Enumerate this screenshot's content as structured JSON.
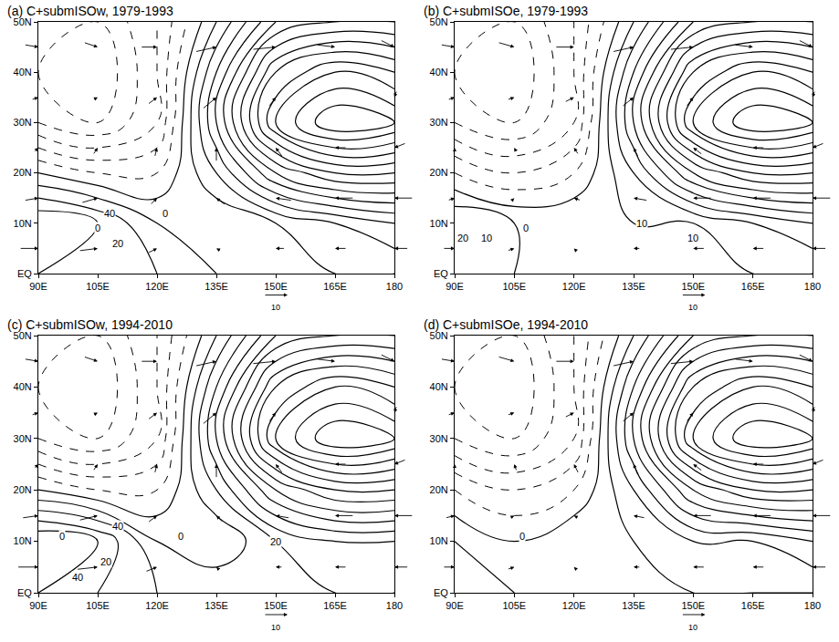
{
  "chart_data": [
    {
      "type": "contour",
      "title": "(a) C+submISOw, 1979-1993",
      "xlim": [
        90,
        180
      ],
      "ylim": [
        0,
        50
      ],
      "xticks": [
        {
          "value": 90,
          "label": "90E"
        },
        {
          "value": 105,
          "label": "105E"
        },
        {
          "value": 120,
          "label": "120E"
        },
        {
          "value": 135,
          "label": "135E"
        },
        {
          "value": 150,
          "label": "150E"
        },
        {
          "value": 165,
          "label": "165E"
        },
        {
          "value": 180,
          "label": "180"
        }
      ],
      "yticks": [
        {
          "value": 0,
          "label": "EQ"
        },
        {
          "value": 10,
          "label": "10N"
        },
        {
          "value": 20,
          "label": "20N"
        },
        {
          "value": 30,
          "label": "30N"
        },
        {
          "value": 40,
          "label": "40N"
        },
        {
          "value": 50,
          "label": "50N"
        }
      ],
      "x": [
        90,
        105,
        120,
        135,
        150,
        165,
        180
      ],
      "y": [
        0,
        10,
        20,
        30,
        40,
        50
      ],
      "z": [
        [
          30,
          30,
          20,
          10,
          10,
          10,
          10
        ],
        [
          40,
          30,
          10,
          0,
          10,
          20,
          30
        ],
        [
          0,
          -10,
          -10,
          20,
          60,
          80,
          80
        ],
        [
          -40,
          -50,
          -30,
          40,
          110,
          140,
          130
        ],
        [
          -50,
          -60,
          -30,
          30,
          90,
          110,
          100
        ],
        [
          -40,
          -50,
          -30,
          10,
          50,
          60,
          60
        ]
      ],
      "contours": {
        "start": -100,
        "end": 150,
        "step": 10
      },
      "contour_labels": [
        {
          "x": 108,
          "y": 12,
          "value": 40
        },
        {
          "x": 105,
          "y": 9,
          "value": 0
        },
        {
          "x": 110,
          "y": 6,
          "value": 20
        },
        {
          "x": 122,
          "y": 12,
          "value": 0
        }
      ],
      "vectors": {
        "x": [
          90,
          105,
          120,
          135,
          150,
          165,
          180
        ],
        "y": [
          5,
          15,
          25,
          35,
          45
        ],
        "u": [
          [
            8,
            8,
            4,
            -2,
            -4,
            -5,
            -6
          ],
          [
            6,
            7,
            3,
            -4,
            -7,
            -8,
            -8
          ],
          [
            2,
            2,
            1,
            0,
            -3,
            -5,
            -5
          ],
          [
            3,
            2,
            4,
            6,
            3,
            0,
            -1
          ],
          [
            6,
            6,
            7,
            9,
            10,
            8,
            6
          ]
        ],
        "v": [
          [
            0,
            1,
            2,
            1,
            0,
            0,
            0
          ],
          [
            1,
            2,
            3,
            3,
            1,
            0,
            0
          ],
          [
            2,
            3,
            4,
            6,
            4,
            0,
            -2
          ],
          [
            1,
            1,
            3,
            5,
            4,
            0,
            -3
          ],
          [
            -1,
            -2,
            0,
            2,
            1,
            -1,
            -3
          ]
        ],
        "reference": {
          "x": 153,
          "value": 10
        }
      }
    },
    {
      "type": "contour",
      "title": "(b) C+submISOe, 1979-1993",
      "xlim": [
        90,
        180
      ],
      "ylim": [
        0,
        50
      ],
      "xticks": [
        {
          "value": 90,
          "label": "90E"
        },
        {
          "value": 105,
          "label": "105E"
        },
        {
          "value": 120,
          "label": "120E"
        },
        {
          "value": 135,
          "label": "135E"
        },
        {
          "value": 150,
          "label": "150E"
        },
        {
          "value": 165,
          "label": "165E"
        },
        {
          "value": 180,
          "label": "180"
        }
      ],
      "yticks": [
        {
          "value": 0,
          "label": "EQ"
        },
        {
          "value": 10,
          "label": "10N"
        },
        {
          "value": 20,
          "label": "20N"
        },
        {
          "value": 30,
          "label": "30N"
        },
        {
          "value": 40,
          "label": "40N"
        },
        {
          "value": 50,
          "label": "50N"
        }
      ],
      "x": [
        90,
        105,
        120,
        135,
        150,
        165,
        180
      ],
      "y": [
        0,
        10,
        20,
        30,
        40,
        50
      ],
      "z": [
        [
          20,
          10,
          10,
          10,
          10,
          10,
          10
        ],
        [
          20,
          10,
          10,
          10,
          10,
          20,
          30
        ],
        [
          -10,
          -20,
          -10,
          20,
          60,
          80,
          80
        ],
        [
          -40,
          -50,
          -30,
          40,
          110,
          140,
          130
        ],
        [
          -50,
          -60,
          -30,
          30,
          90,
          110,
          100
        ],
        [
          -40,
          -50,
          -30,
          10,
          50,
          60,
          60
        ]
      ],
      "contours": {
        "start": -100,
        "end": 150,
        "step": 10
      },
      "contour_labels": [
        {
          "x": 92,
          "y": 7,
          "value": 20
        },
        {
          "x": 98,
          "y": 7,
          "value": 10
        },
        {
          "x": 108,
          "y": 9,
          "value": 0
        },
        {
          "x": 137,
          "y": 10,
          "value": 10
        },
        {
          "x": 150,
          "y": 7,
          "value": 10
        }
      ],
      "vectors": {
        "x": [
          90,
          105,
          120,
          135,
          150,
          165,
          180
        ],
        "y": [
          5,
          15,
          25,
          35,
          45
        ],
        "u": [
          [
            5,
            3,
            -1,
            -3,
            -5,
            -5,
            -6
          ],
          [
            3,
            1,
            -3,
            -6,
            -8,
            -8,
            -8
          ],
          [
            0,
            -1,
            -2,
            -2,
            -4,
            -5,
            -5
          ],
          [
            3,
            3,
            4,
            5,
            3,
            0,
            -1
          ],
          [
            6,
            7,
            8,
            9,
            10,
            8,
            6
          ]
        ],
        "v": [
          [
            0,
            1,
            1,
            0,
            0,
            0,
            0
          ],
          [
            1,
            1,
            1,
            1,
            0,
            0,
            0
          ],
          [
            1,
            2,
            3,
            4,
            3,
            0,
            -2
          ],
          [
            1,
            1,
            2,
            4,
            4,
            0,
            -3
          ],
          [
            -1,
            -2,
            0,
            2,
            1,
            -1,
            -3
          ]
        ],
        "reference": {
          "x": 153,
          "value": 10
        }
      }
    },
    {
      "type": "contour",
      "title": "(c) C+submISOw, 1994-2010",
      "xlim": [
        90,
        180
      ],
      "ylim": [
        0,
        50
      ],
      "xticks": [
        {
          "value": 90,
          "label": "90E"
        },
        {
          "value": 105,
          "label": "105E"
        },
        {
          "value": 120,
          "label": "120E"
        },
        {
          "value": 135,
          "label": "135E"
        },
        {
          "value": 150,
          "label": "150E"
        },
        {
          "value": 165,
          "label": "165E"
        },
        {
          "value": 180,
          "label": "180"
        }
      ],
      "yticks": [
        {
          "value": 0,
          "label": "EQ"
        },
        {
          "value": 10,
          "label": "10N"
        },
        {
          "value": 20,
          "label": "20N"
        },
        {
          "value": 30,
          "label": "30N"
        },
        {
          "value": 40,
          "label": "40N"
        },
        {
          "value": 50,
          "label": "50N"
        }
      ],
      "x": [
        90,
        105,
        120,
        135,
        150,
        165,
        180
      ],
      "y": [
        0,
        10,
        20,
        30,
        40,
        50
      ],
      "z": [
        [
          40,
          30,
          20,
          20,
          20,
          20,
          20
        ],
        [
          50,
          40,
          10,
          0,
          20,
          30,
          30
        ],
        [
          0,
          -10,
          -10,
          20,
          60,
          80,
          80
        ],
        [
          -40,
          -50,
          -30,
          40,
          110,
          140,
          130
        ],
        [
          -50,
          -60,
          -30,
          30,
          90,
          110,
          100
        ],
        [
          -40,
          -50,
          -30,
          10,
          50,
          60,
          60
        ]
      ],
      "contours": {
        "start": -100,
        "end": 150,
        "step": 10
      },
      "contour_labels": [
        {
          "x": 110,
          "y": 13,
          "value": 40
        },
        {
          "x": 96,
          "y": 11,
          "value": 0
        },
        {
          "x": 107,
          "y": 6,
          "value": 20
        },
        {
          "x": 126,
          "y": 11,
          "value": 0
        },
        {
          "x": 100,
          "y": 3,
          "value": 40
        },
        {
          "x": 150,
          "y": 10,
          "value": 20
        }
      ],
      "vectors": {
        "x": [
          90,
          105,
          120,
          135,
          150,
          165,
          180
        ],
        "y": [
          5,
          15,
          25,
          35,
          45
        ],
        "u": [
          [
            9,
            9,
            5,
            -1,
            -3,
            -5,
            -6
          ],
          [
            7,
            8,
            4,
            -3,
            -6,
            -8,
            -8
          ],
          [
            2,
            2,
            1,
            0,
            -3,
            -5,
            -5
          ],
          [
            3,
            2,
            4,
            6,
            3,
            0,
            -1
          ],
          [
            6,
            6,
            7,
            9,
            10,
            8,
            6
          ]
        ],
        "v": [
          [
            0,
            1,
            2,
            1,
            0,
            0,
            0
          ],
          [
            1,
            2,
            3,
            3,
            1,
            0,
            0
          ],
          [
            2,
            3,
            4,
            6,
            4,
            0,
            -2
          ],
          [
            1,
            1,
            3,
            5,
            4,
            0,
            -3
          ],
          [
            -1,
            -2,
            0,
            2,
            1,
            -1,
            -3
          ]
        ],
        "reference": {
          "x": 153,
          "value": 10
        }
      }
    },
    {
      "type": "contour",
      "title": "(d) C+submISOe, 1994-2010",
      "xlim": [
        90,
        180
      ],
      "ylim": [
        0,
        50
      ],
      "xticks": [
        {
          "value": 90,
          "label": "90E"
        },
        {
          "value": 105,
          "label": "105E"
        },
        {
          "value": 120,
          "label": "120E"
        },
        {
          "value": 135,
          "label": "135E"
        },
        {
          "value": 150,
          "label": "150E"
        },
        {
          "value": 165,
          "label": "165E"
        },
        {
          "value": 180,
          "label": "180"
        }
      ],
      "yticks": [
        {
          "value": 0,
          "label": "EQ"
        },
        {
          "value": 10,
          "label": "10N"
        },
        {
          "value": 20,
          "label": "20N"
        },
        {
          "value": 30,
          "label": "30N"
        },
        {
          "value": 40,
          "label": "40N"
        },
        {
          "value": 50,
          "label": "50N"
        }
      ],
      "x": [
        90,
        105,
        120,
        135,
        150,
        165,
        180
      ],
      "y": [
        0,
        10,
        20,
        30,
        40,
        50
      ],
      "z": [
        [
          20,
          10,
          10,
          10,
          10,
          10,
          10
        ],
        [
          10,
          0,
          10,
          10,
          20,
          20,
          30
        ],
        [
          -10,
          -20,
          -10,
          20,
          60,
          80,
          80
        ],
        [
          -40,
          -50,
          -30,
          40,
          110,
          140,
          130
        ],
        [
          -50,
          -60,
          -30,
          30,
          90,
          110,
          100
        ],
        [
          -40,
          -50,
          -30,
          10,
          50,
          60,
          60
        ]
      ],
      "contours": {
        "start": -100,
        "end": 150,
        "step": 10
      },
      "contour_labels": [
        {
          "x": 107,
          "y": 11,
          "value": 0
        }
      ],
      "vectors": {
        "x": [
          90,
          105,
          120,
          135,
          150,
          165,
          180
        ],
        "y": [
          5,
          15,
          25,
          35,
          45
        ],
        "u": [
          [
            5,
            3,
            -1,
            -3,
            -5,
            -5,
            -6
          ],
          [
            4,
            2,
            -2,
            -5,
            -8,
            -8,
            -8
          ],
          [
            0,
            -1,
            -2,
            -2,
            -4,
            -5,
            -5
          ],
          [
            3,
            3,
            4,
            5,
            3,
            0,
            -1
          ],
          [
            6,
            7,
            8,
            9,
            10,
            8,
            6
          ]
        ],
        "v": [
          [
            0,
            1,
            1,
            0,
            0,
            0,
            0
          ],
          [
            1,
            1,
            1,
            1,
            0,
            0,
            0
          ],
          [
            2,
            3,
            4,
            5,
            3,
            0,
            -2
          ],
          [
            1,
            1,
            2,
            4,
            4,
            0,
            -3
          ],
          [
            -1,
            -2,
            0,
            2,
            1,
            -1,
            -3
          ]
        ],
        "reference": {
          "x": 153,
          "value": 10
        }
      }
    }
  ]
}
